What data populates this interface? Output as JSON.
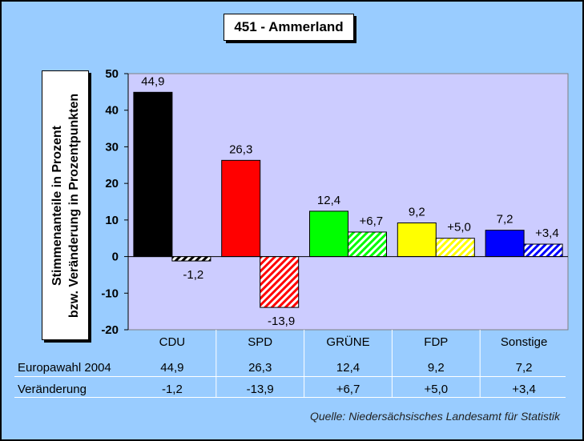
{
  "title": "451 - Ammerland",
  "ylabel_line1": "Stimmenanteile in Prozent",
  "ylabel_line2": "bzw. Veränderung in Prozentpunkten",
  "source": "Quelle: Niedersächsisches Landesamt für Statistik",
  "table": {
    "row1_label": "Europawahl 2004",
    "row2_label": "Veränderung",
    "row1_values": [
      "44,9",
      "26,3",
      "12,4",
      "9,2",
      "7,2"
    ],
    "row2_values": [
      "-1,2",
      "-13,9",
      "+6,7",
      "+5,0",
      "+3,4"
    ]
  },
  "colors": {
    "background": "#99ccff",
    "plot_area": "#ccccff",
    "CDU": "#000000",
    "SPD": "#ff0000",
    "GRÜNE": "#00ff00",
    "FDP": "#ffff00",
    "Sonstige": "#0000ff"
  },
  "chart_data": {
    "type": "bar",
    "categories": [
      "CDU",
      "SPD",
      "GRÜNE",
      "FDP",
      "Sonstige"
    ],
    "series": [
      {
        "name": "Europawahl 2004",
        "values": [
          44.9,
          26.3,
          12.4,
          9.2,
          7.2
        ],
        "labels": [
          "44,9",
          "26,3",
          "12,4",
          "9,2",
          "7,2"
        ],
        "fill": "solid"
      },
      {
        "name": "Veränderung",
        "values": [
          -1.2,
          -13.9,
          6.7,
          5.0,
          3.4
        ],
        "labels": [
          "-1,2",
          "-13,9",
          "+6,7",
          "+5,0",
          "+3,4"
        ],
        "fill": "hatched"
      }
    ],
    "ylim": [
      -20,
      50
    ],
    "yticks": [
      -20,
      -10,
      0,
      10,
      20,
      30,
      40,
      50
    ],
    "grid": false,
    "legend": "none"
  }
}
